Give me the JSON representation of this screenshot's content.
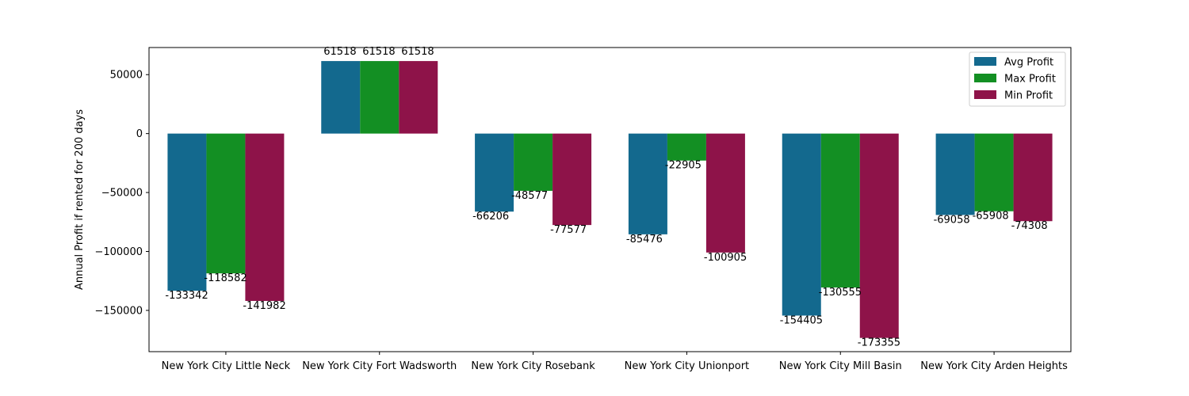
{
  "chart_data": {
    "type": "bar",
    "title": "",
    "xlabel": "",
    "ylabel": "Annual Profit if rented for 200 days",
    "categories": [
      "New York City Little Neck",
      "New York City Fort Wadsworth",
      "New York City Rosebank",
      "New York City Unionport",
      "New York City Mill Basin",
      "New York City Arden Heights"
    ],
    "series": [
      {
        "name": "Avg Profit",
        "color": "#13698e",
        "values": [
          -133342,
          61518,
          -66206,
          -85476,
          -154405,
          -69058
        ]
      },
      {
        "name": "Max Profit",
        "color": "#138f23",
        "values": [
          -118582,
          61518,
          -48577,
          -22905,
          -130555,
          -65908
        ]
      },
      {
        "name": "Min Profit",
        "color": "#8e1349",
        "values": [
          -141982,
          61518,
          -77577,
          -100905,
          -173355,
          -74308
        ]
      }
    ],
    "ylim": [
      -185000,
      73000
    ],
    "yticks": [
      -150000,
      -100000,
      -50000,
      0,
      50000
    ],
    "legend_position": "top-right",
    "grid": false,
    "data_labels": true
  }
}
